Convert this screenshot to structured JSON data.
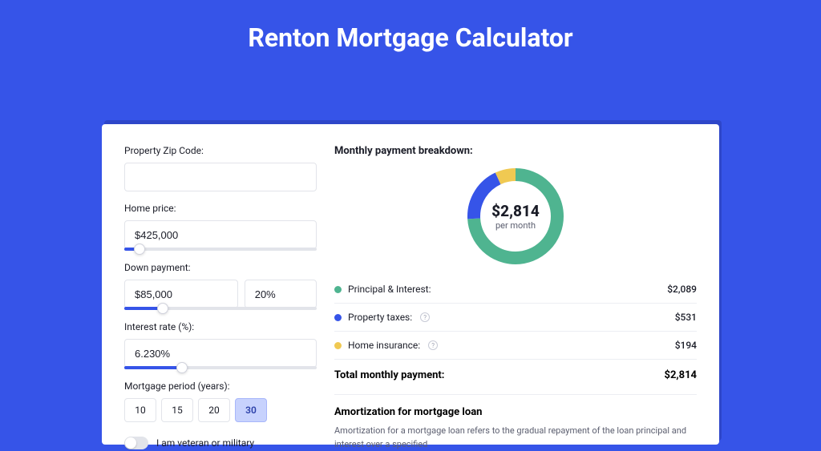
{
  "hero": {
    "title": "Renton Mortgage Calculator"
  },
  "colors": {
    "page_bg": "#3654e8",
    "panel_bg": "#ffffff",
    "shadow_bg": "#2e46c9",
    "accent": "#3654e8",
    "text": "#1b1d28",
    "muted": "#5b5e6f",
    "border": "#e2e4ea",
    "active_bg": "#c7d2fd"
  },
  "form": {
    "zip": {
      "label": "Property Zip Code:",
      "value": ""
    },
    "home_price": {
      "label": "Home price:",
      "value": "$425,000",
      "slider_pct": 8
    },
    "down_payment": {
      "label": "Down payment:",
      "value": "$85,000",
      "pct": "20%",
      "slider_pct": 20
    },
    "interest_rate": {
      "label": "Interest rate (%):",
      "value": "6.230%",
      "slider_pct": 30
    },
    "mortgage_period": {
      "label": "Mortgage period (years):",
      "options": [
        "10",
        "15",
        "20",
        "30"
      ],
      "selected": "30"
    },
    "veteran": {
      "label": "I am veteran or military",
      "checked": false
    }
  },
  "breakdown": {
    "title": "Monthly payment breakdown:",
    "total_amount": "$2,814",
    "per_month_label": "per month",
    "items": [
      {
        "label": "Principal & Interest:",
        "value": "$2,089",
        "color": "#4fb490",
        "pct": 74,
        "help": false
      },
      {
        "label": "Property taxes:",
        "value": "$531",
        "color": "#3654e8",
        "pct": 19,
        "help": true
      },
      {
        "label": "Home insurance:",
        "value": "$194",
        "color": "#f0c952",
        "pct": 7,
        "help": true
      }
    ],
    "total_label": "Total monthly payment:",
    "total_value": "$2,814",
    "donut": {
      "stroke_width": 16,
      "radius": 52,
      "bg": "#ffffff"
    }
  },
  "amortization": {
    "title": "Amortization for mortgage loan",
    "text": "Amortization for a mortgage loan refers to the gradual repayment of the loan principal and interest over a specified"
  }
}
